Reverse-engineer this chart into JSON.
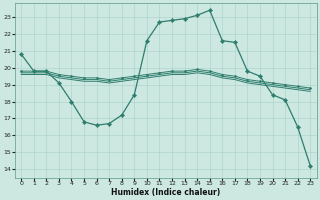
{
  "xlabel": "Humidex (Indice chaleur)",
  "xlim": [
    -0.5,
    23.5
  ],
  "ylim": [
    13.5,
    23.8
  ],
  "yticks": [
    14,
    15,
    16,
    17,
    18,
    19,
    20,
    21,
    22,
    23
  ],
  "xticks": [
    0,
    1,
    2,
    3,
    4,
    5,
    6,
    7,
    8,
    9,
    10,
    11,
    12,
    13,
    14,
    15,
    16,
    17,
    18,
    19,
    20,
    21,
    22,
    23
  ],
  "bg_color": "#cce8e0",
  "line_color": "#2e7d6e",
  "line1_x": [
    0,
    1,
    2,
    3,
    4,
    5,
    6,
    7,
    8,
    9,
    10,
    11,
    12,
    13,
    14,
    15,
    16,
    17,
    18,
    19,
    20,
    21,
    22,
    23
  ],
  "line1_y": [
    20.8,
    19.8,
    19.8,
    19.1,
    18.0,
    16.8,
    16.6,
    16.7,
    17.2,
    18.4,
    21.6,
    22.7,
    22.8,
    22.9,
    23.1,
    23.4,
    21.6,
    21.5,
    19.8,
    19.5,
    18.4,
    18.1,
    16.5,
    14.2
  ],
  "line2_x": [
    0,
    1,
    2,
    3,
    4,
    5,
    6,
    7,
    8,
    9,
    10,
    11,
    12,
    13,
    14,
    15,
    16,
    17,
    18,
    19,
    20,
    21,
    22,
    23
  ],
  "line2_y": [
    19.8,
    19.8,
    19.8,
    19.6,
    19.5,
    19.4,
    19.4,
    19.3,
    19.4,
    19.5,
    19.6,
    19.7,
    19.8,
    19.8,
    19.9,
    19.8,
    19.6,
    19.5,
    19.3,
    19.2,
    19.1,
    19.0,
    18.9,
    18.8
  ],
  "line3_x": [
    0,
    1,
    2,
    3,
    4,
    5,
    6,
    7,
    8,
    9,
    10,
    11,
    12,
    13,
    14,
    15,
    16,
    17,
    18,
    19,
    20,
    21,
    22,
    23
  ],
  "line3_y": [
    19.7,
    19.7,
    19.7,
    19.5,
    19.4,
    19.3,
    19.3,
    19.2,
    19.3,
    19.4,
    19.5,
    19.6,
    19.7,
    19.7,
    19.8,
    19.7,
    19.5,
    19.4,
    19.2,
    19.1,
    19.0,
    18.9,
    18.8,
    18.7
  ],
  "line4_x": [
    0,
    1,
    2,
    3,
    4,
    5,
    6,
    7,
    8,
    9,
    10,
    11,
    12,
    13,
    14,
    15,
    16,
    17,
    18,
    19,
    20,
    21,
    22,
    23
  ],
  "line4_y": [
    19.6,
    19.6,
    19.6,
    19.4,
    19.3,
    19.2,
    19.2,
    19.1,
    19.2,
    19.3,
    19.4,
    19.5,
    19.6,
    19.6,
    19.7,
    19.6,
    19.4,
    19.3,
    19.1,
    19.0,
    18.9,
    18.8,
    18.7,
    18.6
  ]
}
